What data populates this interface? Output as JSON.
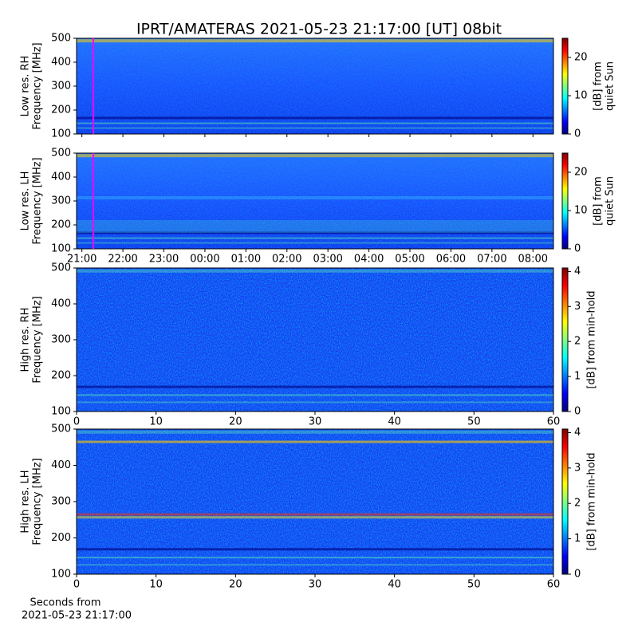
{
  "title": "IPRT/AMATERAS 2021-05-23 21:17:00 [UT]   08bit",
  "chart_data": [
    {
      "type": "heatmap",
      "ylabel": [
        "Low res. RH",
        "Frequency [MHz]"
      ],
      "ylim": [
        100,
        500
      ],
      "yticks": [
        100,
        200,
        300,
        400,
        500
      ],
      "xlim": [
        20.87,
        32.5
      ],
      "xticks": [
        21,
        22,
        23,
        24,
        25,
        26,
        27,
        28,
        29,
        30,
        31,
        32
      ],
      "marker_x": 21.28,
      "marker_color": "#ff00ff",
      "colorbar": {
        "label": [
          "[dB] from",
          "quiet Sun"
        ],
        "lim": [
          0,
          25
        ],
        "ticks": [
          0,
          10,
          20
        ]
      }
    },
    {
      "type": "heatmap",
      "ylabel": [
        "Low res. LH",
        "Frequency [MHz]"
      ],
      "ylim": [
        100,
        500
      ],
      "yticks": [
        100,
        200,
        300,
        400,
        500
      ],
      "xlim": [
        20.87,
        32.5
      ],
      "xticks": [
        {
          "value": 21,
          "label": "21:00"
        },
        {
          "value": 22,
          "label": "22:00"
        },
        {
          "value": 23,
          "label": "23:00"
        },
        {
          "value": 24,
          "label": "00:00"
        },
        {
          "value": 25,
          "label": "01:00"
        },
        {
          "value": 26,
          "label": "02:00"
        },
        {
          "value": 27,
          "label": "03:00"
        },
        {
          "value": 28,
          "label": "04:00"
        },
        {
          "value": 29,
          "label": "05:00"
        },
        {
          "value": 30,
          "label": "06:00"
        },
        {
          "value": 31,
          "label": "07:00"
        },
        {
          "value": 32,
          "label": "08:00"
        }
      ],
      "marker_x": 21.28,
      "marker_color": "#ff00ff",
      "colorbar": {
        "label": [
          "[dB] from",
          "quiet Sun"
        ],
        "lim": [
          0,
          25
        ],
        "ticks": [
          0,
          10,
          20
        ]
      }
    },
    {
      "type": "heatmap",
      "ylabel": [
        "High res. RH",
        "Frequency [MHz]"
      ],
      "ylim": [
        100,
        500
      ],
      "yticks": [
        100,
        200,
        300,
        400,
        500
      ],
      "xlim": [
        0,
        60
      ],
      "xticks": [
        0,
        10,
        20,
        30,
        40,
        50,
        60
      ],
      "colorbar": {
        "label": [
          "[dB] from min-hold"
        ],
        "lim": [
          0,
          4.1
        ],
        "ticks": [
          0,
          1,
          2,
          3,
          4
        ]
      }
    },
    {
      "type": "heatmap",
      "ylabel": [
        "High res. LH",
        "Frequency [MHz]"
      ],
      "ylim": [
        100,
        500
      ],
      "yticks": [
        100,
        200,
        300,
        400,
        500
      ],
      "xlim": [
        0,
        60
      ],
      "xticks": [
        0,
        10,
        20,
        30,
        40,
        50,
        60
      ],
      "xlabel": [
        "Seconds from",
        "2021-05-23 21:17:00"
      ],
      "colorbar": {
        "label": [
          "[dB] from min-hold"
        ],
        "lim": [
          0,
          4.1
        ],
        "ticks": [
          0,
          1,
          2,
          3,
          4
        ]
      }
    }
  ]
}
